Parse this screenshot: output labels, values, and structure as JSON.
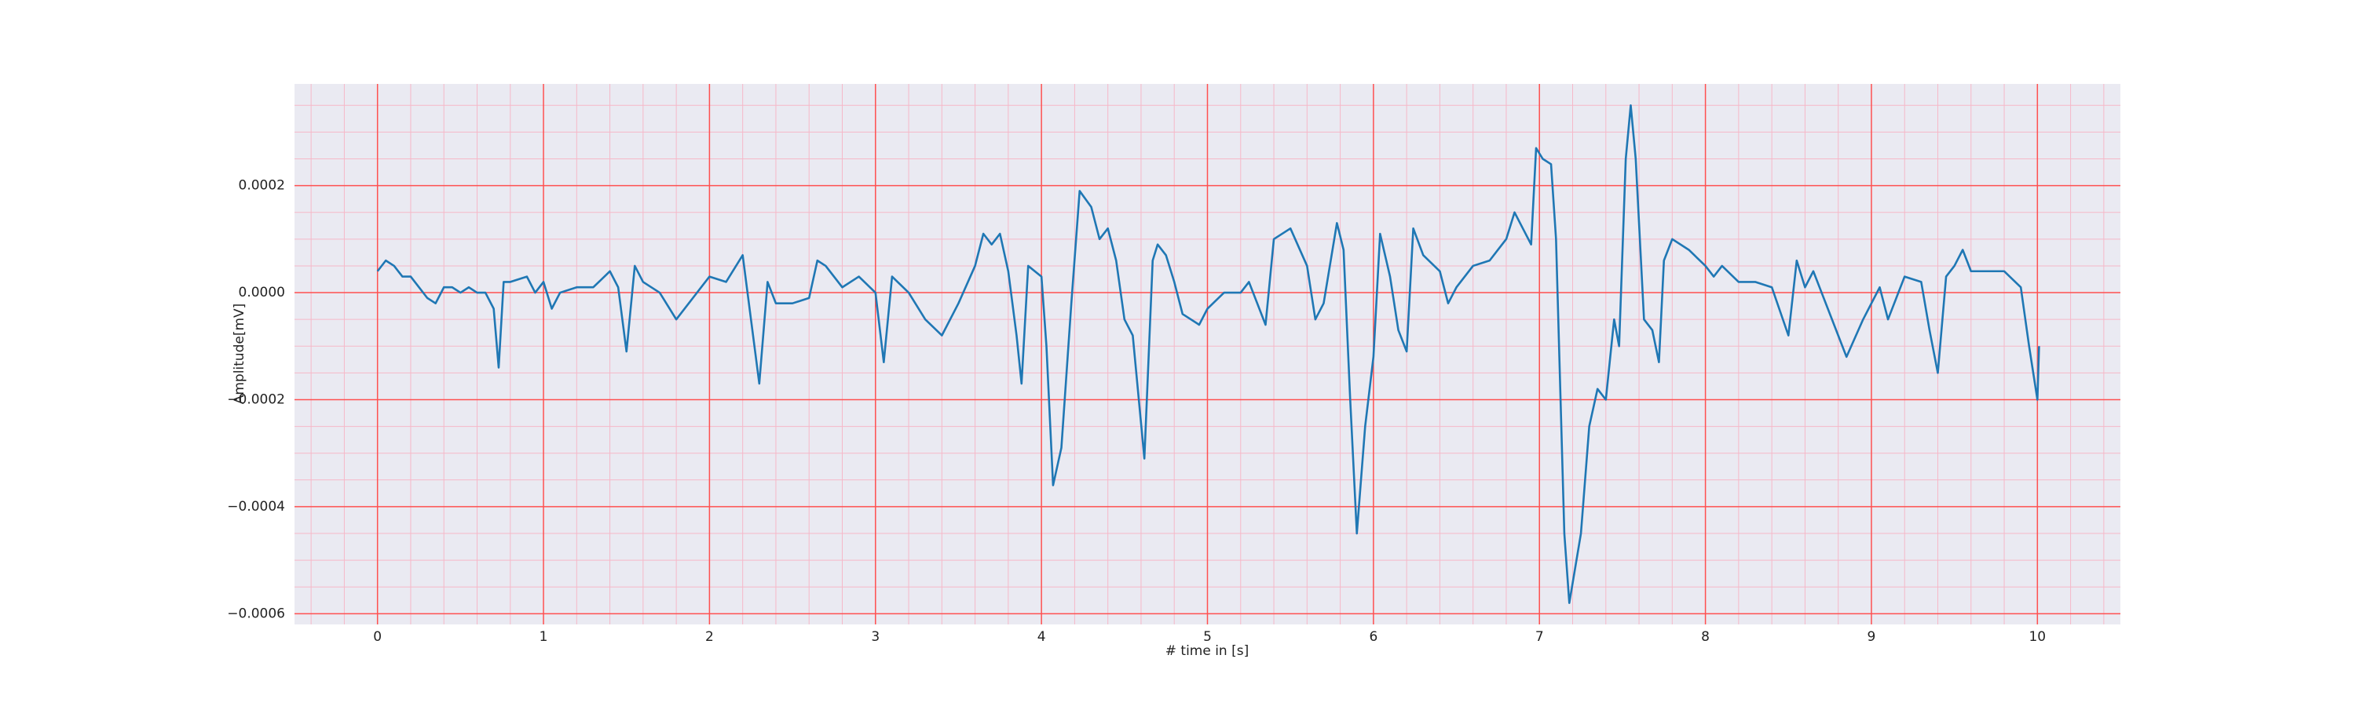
{
  "chart_data": {
    "type": "line",
    "xlabel": "# time in [s]",
    "ylabel": "Amplitude[mV]",
    "color": "#1f77b4",
    "grid": true,
    "xlim": [
      -0.5,
      10.5
    ],
    "ylim": [
      -0.00062,
      0.00039
    ],
    "xticks": [
      0,
      1,
      2,
      3,
      4,
      5,
      6,
      7,
      8,
      9,
      10
    ],
    "yticks": [
      0.0002,
      {
        "value": 0,
        "label": "0.0000"
      },
      {
        "value": -0.0002,
        "label": "−0.0002"
      },
      {
        "value": -0.0004,
        "label": "−0.0004"
      },
      {
        "value": -0.0006,
        "label": "−0.0006"
      }
    ],
    "xminorticks": [
      -0.4,
      -0.2,
      0.2,
      0.4,
      0.6,
      0.8,
      1.2,
      1.4,
      1.6,
      1.8,
      2.2,
      2.4,
      2.6,
      2.8,
      3.2,
      3.4,
      3.6,
      3.8,
      4.2,
      4.4,
      4.6,
      4.8,
      5.2,
      5.4,
      5.6,
      5.8,
      6.2,
      6.4,
      6.6,
      6.8,
      7.2,
      7.4,
      7.6,
      7.8,
      8.2,
      8.4,
      8.6,
      8.8,
      9.2,
      9.4,
      9.6,
      9.8,
      10.2,
      10.4
    ],
    "yminorticks": [
      -0.00055,
      -0.0005,
      -0.00045,
      -0.00035,
      -0.0003,
      -0.00025,
      -0.00015,
      -0.0001,
      -5e-05,
      5e-05,
      0.0001,
      0.00015,
      0.00025,
      0.0003,
      0.00035
    ],
    "x": [
      0,
      0.05,
      0.1,
      0.15,
      0.2,
      0.25,
      0.3,
      0.35,
      0.4,
      0.45,
      0.5,
      0.55,
      0.6,
      0.65,
      0.7,
      0.73,
      0.76,
      0.8,
      0.9,
      0.95,
      1.0,
      1.05,
      1.1,
      1.2,
      1.3,
      1.4,
      1.45,
      1.5,
      1.55,
      1.6,
      1.7,
      1.8,
      1.9,
      2.0,
      2.1,
      2.2,
      2.25,
      2.3,
      2.35,
      2.4,
      2.5,
      2.6,
      2.65,
      2.7,
      2.8,
      2.9,
      3.0,
      3.05,
      3.1,
      3.2,
      3.3,
      3.4,
      3.5,
      3.6,
      3.65,
      3.7,
      3.75,
      3.8,
      3.85,
      3.88,
      3.92,
      4.0,
      4.03,
      4.07,
      4.12,
      4.18,
      4.23,
      4.3,
      4.35,
      4.4,
      4.45,
      4.5,
      4.55,
      4.62,
      4.67,
      4.7,
      4.75,
      4.8,
      4.85,
      4.95,
      5.0,
      5.1,
      5.2,
      5.25,
      5.35,
      5.4,
      5.5,
      5.6,
      5.65,
      5.7,
      5.78,
      5.82,
      5.86,
      5.9,
      5.95,
      6.0,
      6.04,
      6.1,
      6.15,
      6.2,
      6.24,
      6.3,
      6.4,
      6.45,
      6.5,
      6.6,
      6.7,
      6.8,
      6.85,
      6.9,
      6.95,
      6.98,
      7.02,
      7.07,
      7.1,
      7.15,
      7.18,
      7.25,
      7.3,
      7.35,
      7.4,
      7.45,
      7.48,
      7.52,
      7.55,
      7.58,
      7.63,
      7.68,
      7.72,
      7.75,
      7.8,
      7.9,
      8.0,
      8.05,
      8.1,
      8.2,
      8.3,
      8.4,
      8.5,
      8.55,
      8.6,
      8.65,
      8.7,
      8.8,
      8.85,
      8.95,
      9.05,
      9.1,
      9.2,
      9.3,
      9.35,
      9.4,
      9.45,
      9.5,
      9.55,
      9.6,
      9.7,
      9.8,
      9.9,
      9.95,
      10.0,
      10.01
    ],
    "values": [
      4e-05,
      6e-05,
      5e-05,
      3e-05,
      3e-05,
      1e-05,
      -1e-05,
      -2e-05,
      1e-05,
      1e-05,
      0,
      1e-05,
      0,
      0,
      -3e-05,
      -0.00014,
      2e-05,
      2e-05,
      3e-05,
      0,
      2e-05,
      -3e-05,
      0,
      1e-05,
      1e-05,
      4e-05,
      1e-05,
      -0.00011,
      5e-05,
      2e-05,
      0,
      -5e-05,
      -1e-05,
      3e-05,
      2e-05,
      7e-05,
      -5e-05,
      -0.00017,
      2e-05,
      -2e-05,
      -2e-05,
      -1e-05,
      6e-05,
      5e-05,
      1e-05,
      3e-05,
      0,
      -0.00013,
      3e-05,
      0,
      -5e-05,
      -8e-05,
      -2e-05,
      5e-05,
      0.00011,
      9e-05,
      0.00011,
      4e-05,
      -8e-05,
      -0.00017,
      5e-05,
      3e-05,
      -0.0001,
      -0.00036,
      -0.00029,
      -2e-05,
      0.00019,
      0.00016,
      0.0001,
      0.00012,
      6e-05,
      -5e-05,
      -8e-05,
      -0.00031,
      6e-05,
      9e-05,
      7e-05,
      2e-05,
      -4e-05,
      -6e-05,
      -3e-05,
      0,
      0,
      2e-05,
      -6e-05,
      0.0001,
      0.00012,
      5e-05,
      -5e-05,
      -2e-05,
      0.00013,
      8e-05,
      -0.0002,
      -0.00045,
      -0.00025,
      -0.00012,
      0.00011,
      3e-05,
      -7e-05,
      -0.00011,
      0.00012,
      7e-05,
      4e-05,
      -2e-05,
      1e-05,
      5e-05,
      6e-05,
      0.0001,
      0.00015,
      0.00012,
      9e-05,
      0.00027,
      0.00025,
      0.00024,
      0.0001,
      -0.00045,
      -0.00058,
      -0.00045,
      -0.00025,
      -0.00018,
      -0.0002,
      -5e-05,
      -0.0001,
      0.00025,
      0.00035,
      0.00025,
      -5e-05,
      -7e-05,
      -0.00013,
      6e-05,
      0.0001,
      8e-05,
      5e-05,
      3e-05,
      5e-05,
      2e-05,
      2e-05,
      1e-05,
      -8e-05,
      6e-05,
      1e-05,
      4e-05,
      0,
      -8e-05,
      -0.00012,
      -5e-05,
      1e-05,
      -5e-05,
      3e-05,
      2e-05,
      -7e-05,
      -0.00015,
      3e-05,
      5e-05,
      8e-05,
      4e-05,
      4e-05,
      4e-05,
      1e-05,
      -0.0001,
      -0.0002,
      -0.0001
    ]
  }
}
